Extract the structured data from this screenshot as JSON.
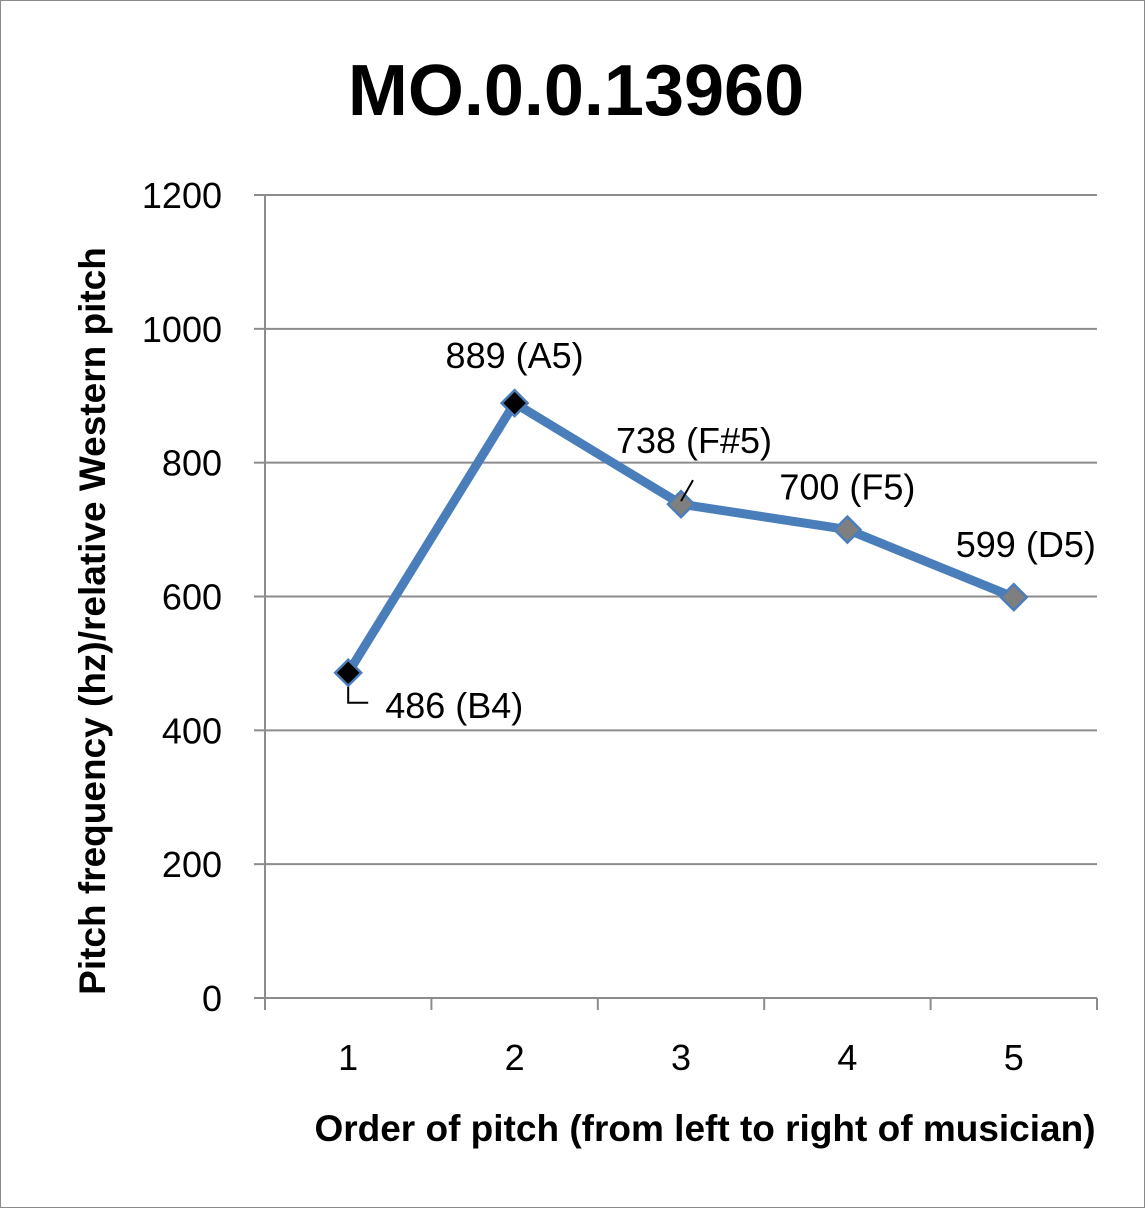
{
  "chart_data": {
    "type": "line",
    "title": "MO.0.0.13960",
    "xlabel": "Order of pitch (from left to right of musician)",
    "ylabel": "Pitch frequency (hz)/relative Western pitch",
    "categories": [
      "1",
      "2",
      "3",
      "4",
      "5"
    ],
    "series": [
      {
        "values": [
          486,
          889,
          738,
          700,
          599
        ],
        "data_labels": [
          "486 (B4)",
          "889 (A5)",
          "738 (F#5)",
          "700 (F5)",
          "599 (D5)"
        ],
        "marker_colors": [
          "#000000",
          "#000000",
          "#7f7f7f",
          "#7f7f7f",
          "#7f7f7f"
        ]
      }
    ],
    "yticks": [
      "0",
      "200",
      "400",
      "600",
      "800",
      "1000",
      "1200"
    ],
    "ylim": [
      0,
      1200
    ],
    "grid": "horizontal",
    "line_color": "#4a7ebb",
    "marker": "diamond"
  }
}
